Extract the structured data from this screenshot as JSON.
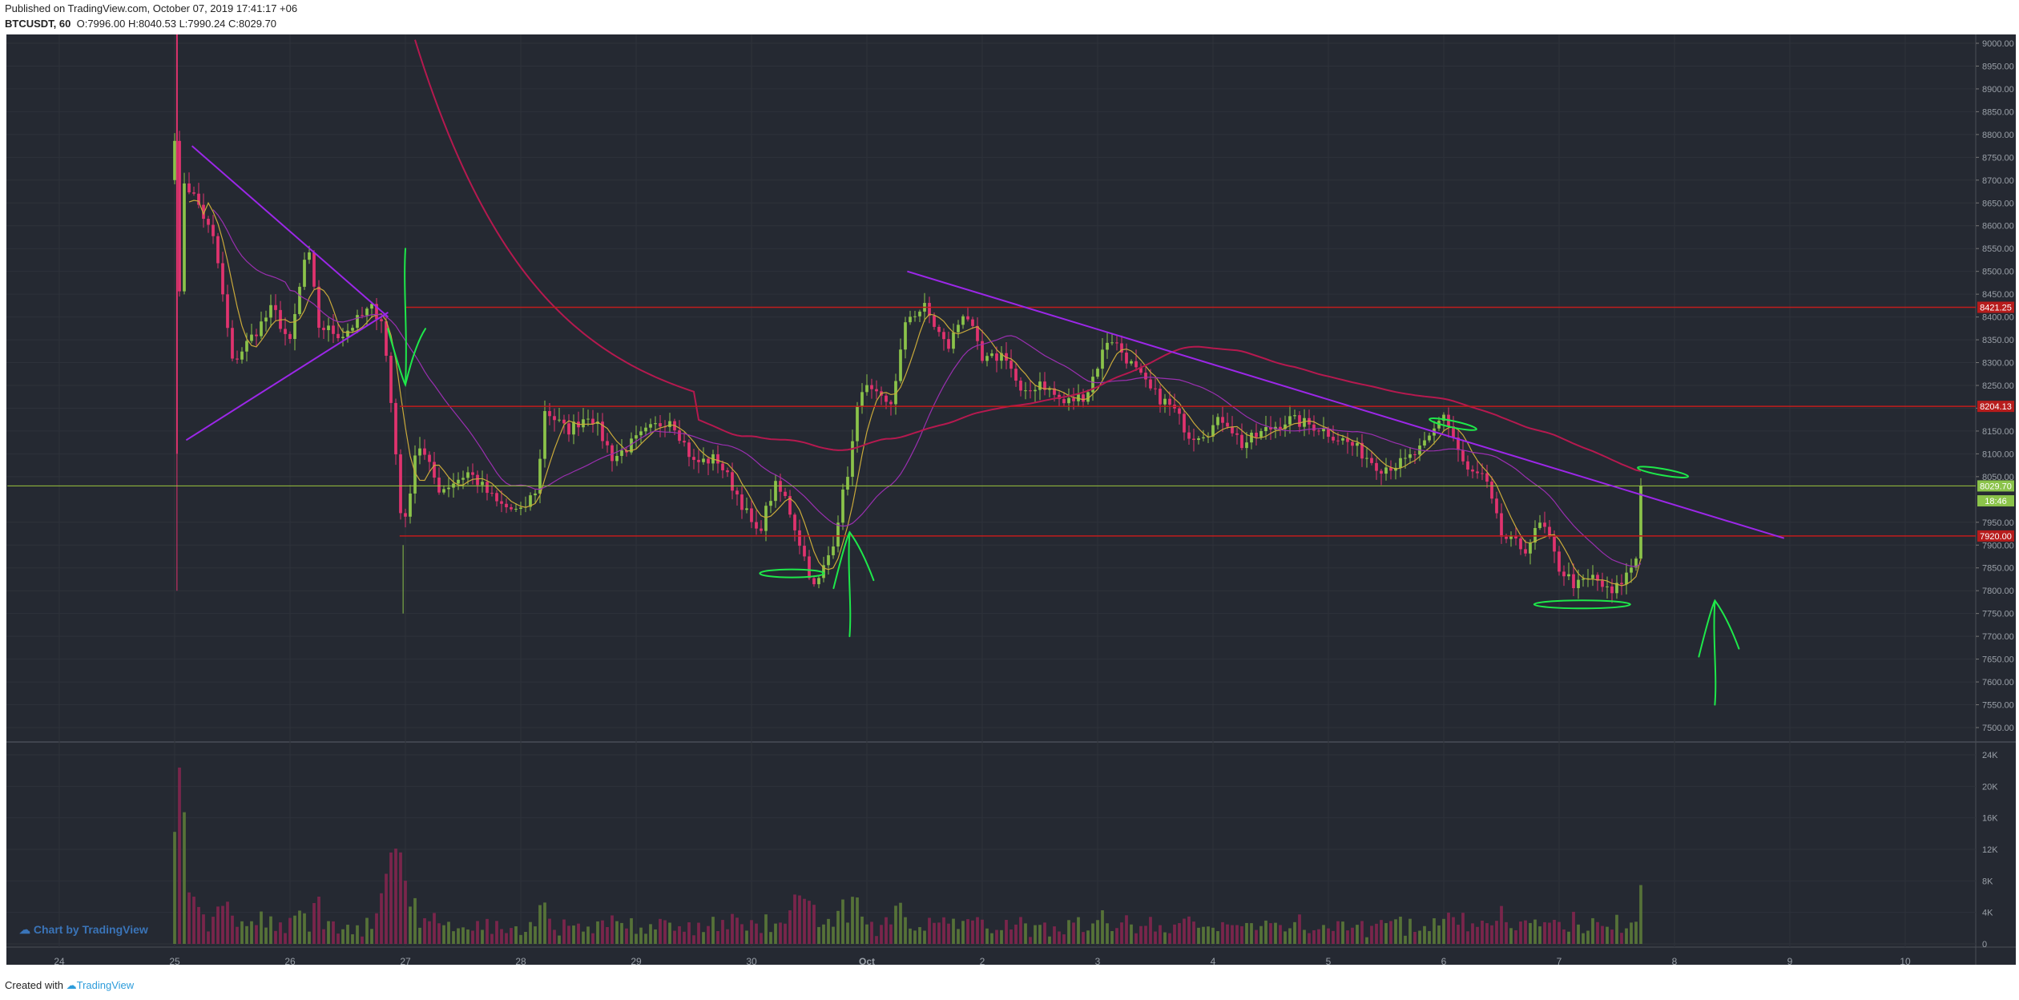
{
  "header": {
    "published": "Published on TradingView.com, October 07, 2019 17:41:17 +06",
    "symbol": "BTCUSDT, 60",
    "open_label": "O:",
    "open": "7996.00",
    "high_label": "H:",
    "high": "8040.53",
    "low_label": "L:",
    "low": "7990.24",
    "close_label": "C:",
    "close": "8029.70"
  },
  "watermark": "Chart by TradingView",
  "footer": {
    "created_with": "Created with",
    "brand": "TradingView"
  },
  "colors": {
    "background": "#252932",
    "grid": "#2e323b",
    "up": "#8bc34a",
    "down": "#e0336e",
    "trendline": "#9c27e8",
    "hline": "#c01d1d",
    "ma_long": "#b5194f",
    "ma_mid": "#9a2fb0",
    "ma_short": "#c9a93a",
    "annotation": "#1ee84a",
    "price_tag": "#8bc34a",
    "level_tag": "#b71c1c"
  },
  "chart_data": {
    "type": "candlestick",
    "price_axis": {
      "min": 7500,
      "max": 9000,
      "ticks": [
        9000,
        8950,
        8900,
        8850,
        8800,
        8750,
        8700,
        8650,
        8600,
        8550,
        8500,
        8450,
        8400,
        8350,
        8300,
        8250,
        8200,
        8150,
        8100,
        8050,
        7950,
        7900,
        7850,
        7800,
        7750,
        7700,
        7650,
        7600,
        7550,
        7500
      ]
    },
    "volume_axis": {
      "ticks": [
        "24K",
        "20K",
        "16K",
        "12K",
        "8K",
        "4K",
        "0"
      ]
    },
    "time_axis": {
      "labels": [
        "24",
        "25",
        "26",
        "27",
        "28",
        "29",
        "30",
        "Oct",
        "2",
        "3",
        "4",
        "5",
        "6",
        "7",
        "8",
        "9",
        "10"
      ],
      "day_index": [
        -1,
        0,
        1,
        2,
        3,
        4,
        5,
        6,
        7,
        8,
        9,
        10,
        11,
        12,
        13,
        14,
        15
      ]
    },
    "price_tags": [
      {
        "value": 8421.25,
        "label": "8421.25",
        "kind": "level"
      },
      {
        "value": 8204.13,
        "label": "8204.13",
        "kind": "level"
      },
      {
        "value": 8029.7,
        "label": "8029.70",
        "kind": "last"
      },
      {
        "value": 7997,
        "label": "18:46",
        "kind": "countdown"
      },
      {
        "value": 7920.0,
        "label": "7920.00",
        "kind": "level"
      }
    ],
    "horizontal_levels": [
      {
        "value": 8421.25,
        "from_day": 2.0
      },
      {
        "value": 8204.13,
        "from_day": 1.95
      },
      {
        "value": 7920.0,
        "from_day": 1.95
      },
      {
        "value": 8029.7,
        "from_day": -1.45,
        "color": "price"
      }
    ],
    "trendlines": [
      {
        "from": [
          0.15,
          8775
        ],
        "to": [
          1.85,
          8400
        ]
      },
      {
        "from": [
          0.1,
          8130
        ],
        "to": [
          1.85,
          8410
        ]
      },
      {
        "from": [
          6.35,
          8500
        ],
        "to": [
          13.95,
          7915
        ]
      }
    ],
    "waypoints": [
      [
        0.0,
        8800
      ],
      [
        0.02,
        8300
      ],
      [
        0.08,
        8700
      ],
      [
        0.2,
        8650
      ],
      [
        0.35,
        8560
      ],
      [
        0.5,
        8300
      ],
      [
        0.65,
        8350
      ],
      [
        0.85,
        8420
      ],
      [
        1.0,
        8340
      ],
      [
        1.15,
        8560
      ],
      [
        1.25,
        8380
      ],
      [
        1.45,
        8360
      ],
      [
        1.7,
        8420
      ],
      [
        1.8,
        8395
      ],
      [
        1.9,
        8150
      ],
      [
        1.98,
        7915
      ],
      [
        2.1,
        8130
      ],
      [
        2.3,
        8020
      ],
      [
        2.55,
        8060
      ],
      [
        2.8,
        7990
      ],
      [
        3.0,
        7970
      ],
      [
        3.15,
        8030
      ],
      [
        3.2,
        8200
      ],
      [
        3.4,
        8150
      ],
      [
        3.6,
        8190
      ],
      [
        3.8,
        8090
      ],
      [
        4.1,
        8150
      ],
      [
        4.3,
        8180
      ],
      [
        4.5,
        8080
      ],
      [
        4.7,
        8090
      ],
      [
        4.9,
        8000
      ],
      [
        5.05,
        7920
      ],
      [
        5.2,
        8030
      ],
      [
        5.3,
        8000
      ],
      [
        5.45,
        7880
      ],
      [
        5.55,
        7800
      ],
      [
        5.7,
        7900
      ],
      [
        5.85,
        8080
      ],
      [
        5.95,
        8250
      ],
      [
        6.2,
        8200
      ],
      [
        6.35,
        8400
      ],
      [
        6.5,
        8420
      ],
      [
        6.7,
        8330
      ],
      [
        6.85,
        8420
      ],
      [
        7.0,
        8300
      ],
      [
        7.2,
        8320
      ],
      [
        7.35,
        8220
      ],
      [
        7.5,
        8260
      ],
      [
        7.7,
        8210
      ],
      [
        7.9,
        8230
      ],
      [
        8.1,
        8360
      ],
      [
        8.25,
        8310
      ],
      [
        8.45,
        8240
      ],
      [
        8.65,
        8200
      ],
      [
        8.8,
        8140
      ],
      [
        8.95,
        8150
      ],
      [
        9.1,
        8180
      ],
      [
        9.25,
        8120
      ],
      [
        9.45,
        8150
      ],
      [
        9.65,
        8175
      ],
      [
        9.9,
        8160
      ],
      [
        10.2,
        8120
      ],
      [
        10.45,
        8070
      ],
      [
        10.65,
        8080
      ],
      [
        10.85,
        8120
      ],
      [
        11.0,
        8190
      ],
      [
        11.2,
        8060
      ],
      [
        11.35,
        8050
      ],
      [
        11.5,
        7920
      ],
      [
        11.7,
        7890
      ],
      [
        11.85,
        7950
      ],
      [
        12.0,
        7850
      ],
      [
        12.15,
        7810
      ],
      [
        12.3,
        7830
      ],
      [
        12.45,
        7790
      ],
      [
        12.6,
        7840
      ],
      [
        12.7,
        7890
      ],
      [
        12.73,
        8029.7
      ]
    ],
    "annotations": [
      {
        "type": "arrow-down",
        "at": [
          2.0,
          8550
        ]
      },
      {
        "type": "arrow-up",
        "at": [
          5.85,
          7700
        ]
      },
      {
        "type": "arrow-up",
        "at": [
          13.35,
          7550
        ]
      }
    ]
  }
}
